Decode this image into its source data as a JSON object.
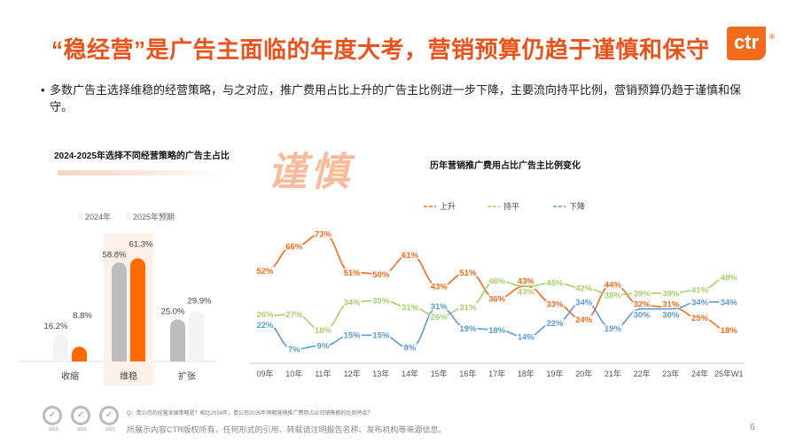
{
  "title": "“稳经营”是广告主面临的年度大考，营销预算仍趋于谨慎和保守",
  "logo": {
    "text": "ctr",
    "mark": "®"
  },
  "bullet": "多数广告主选择维稳的经营策略，与之对应，推广费用占比上升的广告主比例进一步下降，主要流向持平比例，营销预算仍趋于谨慎和保守。",
  "decor_text": "谨慎",
  "chart_data": [
    {
      "type": "bar",
      "title": "2024-2025年选择不同经营策略的广告主占比",
      "categories": [
        "收缩",
        "维稳",
        "扩张"
      ],
      "highlight": "维稳",
      "series": [
        {
          "name": "2024年",
          "values": [
            16.2,
            58.8,
            25.0
          ],
          "labels": [
            "16.2%",
            "58.8%",
            "25.0%"
          ],
          "color": "#bdbdbd"
        },
        {
          "name": "2025年预期",
          "values": [
            8.8,
            61.3,
            29.9
          ],
          "labels": [
            "8.8%",
            "61.3%",
            "29.9%"
          ],
          "color": "#ff6a00"
        }
      ],
      "ylim": [
        0,
        65
      ]
    },
    {
      "type": "line",
      "title": "历年营销推广费用占比广告主比例变化",
      "categories": [
        "09年",
        "10年",
        "11年",
        "12年",
        "13年",
        "14年",
        "15年",
        "16年",
        "17年",
        "18年",
        "19年",
        "20年",
        "21年",
        "22年",
        "23年",
        "24年",
        "25年W1"
      ],
      "series": [
        {
          "name": "上升",
          "color": "#f26b1d",
          "values": [
            52,
            66,
            73,
            51,
            50,
            61,
            43,
            51,
            36,
            43,
            33,
            24,
            44,
            32,
            31,
            25,
            18
          ]
        },
        {
          "name": "持平",
          "color": "#a9cf6b",
          "values": [
            26,
            27,
            18,
            34,
            35,
            31,
            26,
            31,
            46,
            43,
            45,
            42,
            38,
            39,
            39,
            41,
            48
          ]
        },
        {
          "name": "下降",
          "color": "#5b9bd5",
          "values": [
            22,
            7,
            9,
            15,
            15,
            8,
            31,
            19,
            18,
            14,
            22,
            34,
            19,
            30,
            30,
            34,
            34
          ]
        }
      ],
      "unit": "%",
      "legend": "top",
      "ylim": [
        0,
        80
      ]
    }
  ],
  "footer": {
    "question": "Q：贵公司的经营发展策略是？相比2024年，贵公司2025年预期营销推广费用占公司销售额的比例将会？",
    "copyright": "所展示内容CTR版权所有，任何形式的引用、转载请注明报告名称、发布机构等来源信息。",
    "page": "6",
    "badge": "SGS"
  }
}
